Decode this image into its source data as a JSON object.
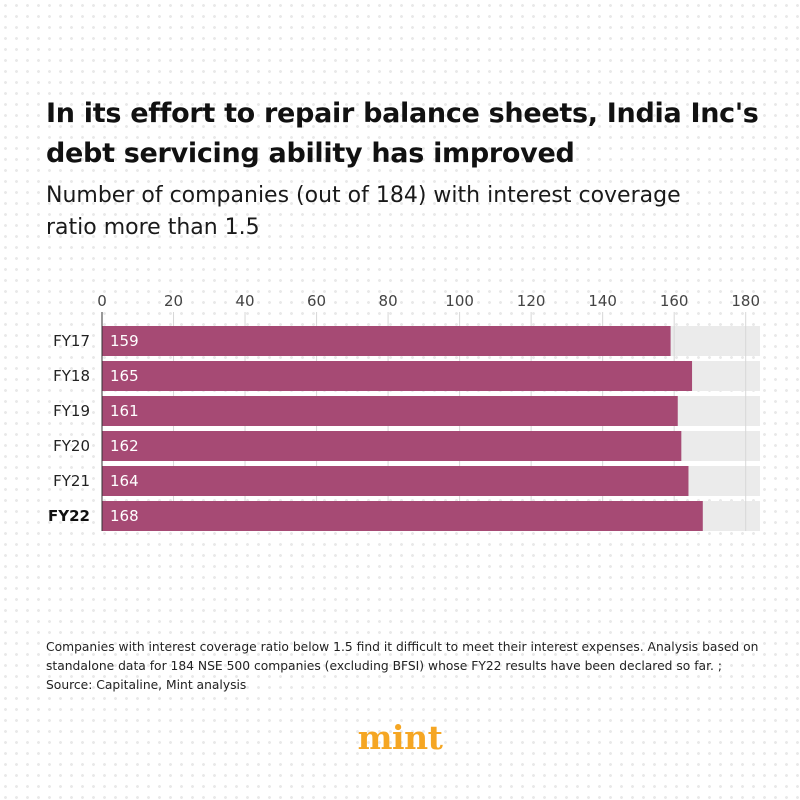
{
  "header": {
    "title": "In its effort to repair balance sheets, India Inc's debt servicing ability has improved",
    "subtitle": "Number of companies (out of 184) with interest coverage ratio more than 1.5"
  },
  "chart_data": {
    "type": "bar",
    "orientation": "horizontal",
    "title": "In its effort to repair balance sheets, India Inc's debt servicing ability has improved",
    "subtitle": "Number of companies (out of 184) with interest coverage ratio more than 1.5",
    "categories": [
      "FY17",
      "FY18",
      "FY19",
      "FY20",
      "FY21",
      "FY22"
    ],
    "values": [
      159,
      165,
      161,
      162,
      164,
      168
    ],
    "data_labels": [
      "159",
      "165",
      "161",
      "162",
      "164",
      "168"
    ],
    "highlight_category": "FY22",
    "xlim": [
      0,
      184
    ],
    "xticks": [
      0,
      20,
      40,
      60,
      80,
      100,
      120,
      140,
      160,
      180
    ],
    "xtick_labels": [
      "0",
      "20",
      "40",
      "60",
      "80",
      "100",
      "120",
      "140",
      "160",
      "180"
    ],
    "xaxis_position": "top",
    "background_total": 184,
    "bar_color": "#a64a74",
    "background_bar_color": "#ebebeb",
    "grid": true,
    "xlabel": "",
    "ylabel": ""
  },
  "footer": {
    "note": "Companies with interest coverage ratio below 1.5 find it difficult to meet their interest expenses. Analysis based on standalone data for 184 NSE 500 companies (excluding BFSI) whose FY22 results have been declared so far. ; Source: Capitaline, Mint analysis",
    "logo_text": "mint",
    "logo_color": "#f5a623"
  }
}
